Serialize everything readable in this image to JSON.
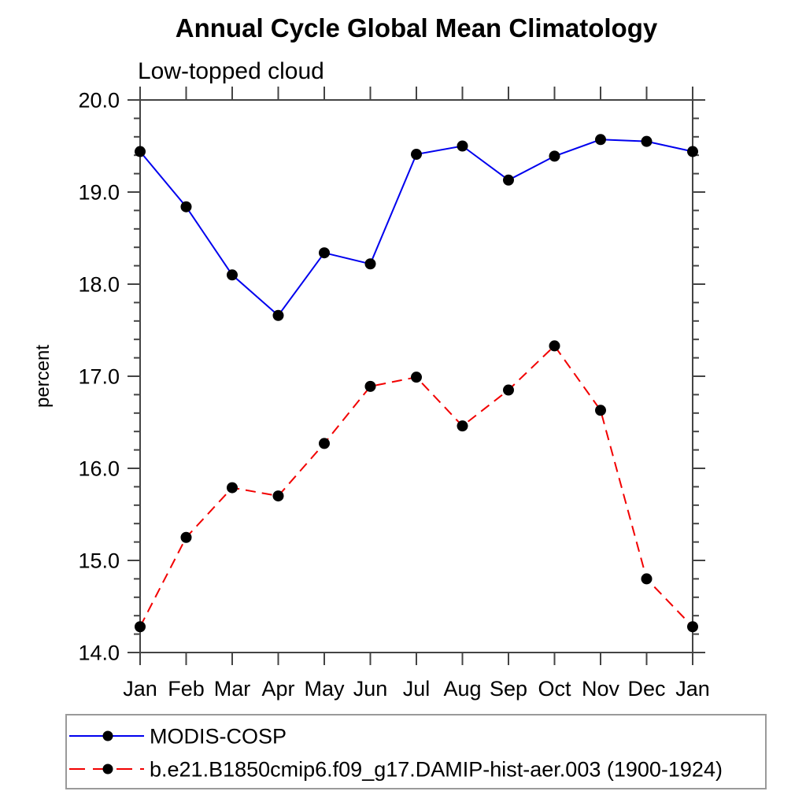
{
  "header": {
    "title": "Annual Cycle Global Mean Climatology",
    "subtitle": "Low-topped cloud"
  },
  "chart_data": {
    "type": "line",
    "title": "Annual Cycle Global Mean Climatology",
    "subtitle": "Low-topped cloud",
    "xlabel": "",
    "ylabel": "percent",
    "categories": [
      "Jan",
      "Feb",
      "Mar",
      "Apr",
      "May",
      "Jun",
      "Jul",
      "Aug",
      "Sep",
      "Oct",
      "Nov",
      "Dec",
      "Jan"
    ],
    "ylim": [
      14.0,
      20.0
    ],
    "ytick_major_step": 1.0,
    "ytick_minor_step": 0.2,
    "ytick_label_format": "one-decimal",
    "grid": false,
    "legend_position": "bottom-left-box",
    "series": [
      {
        "name": "MODIS-COSP",
        "color": "#0000ee",
        "line_style": "solid",
        "marker": "filled-circle",
        "marker_color": "#000000",
        "values": [
          19.44,
          18.84,
          18.1,
          17.66,
          18.34,
          18.22,
          19.41,
          19.5,
          19.13,
          19.39,
          19.57,
          19.55,
          19.44
        ]
      },
      {
        "name": "b.e21.B1850cmip6.f09_g17.DAMIP-hist-aer.003 (1900-1924)",
        "color": "#f20000",
        "line_style": "dashed",
        "marker": "filled-circle",
        "marker_color": "#000000",
        "values": [
          14.28,
          15.25,
          15.79,
          15.7,
          16.27,
          16.89,
          16.99,
          16.46,
          16.85,
          17.33,
          16.63,
          14.8,
          14.28
        ]
      }
    ]
  },
  "style": {
    "background": "#ffffff",
    "frame_color": "#444444",
    "text_color": "#000000",
    "legend_border_color": "#9a9a9a",
    "blue": "#0000ee",
    "red": "#f20000",
    "marker_black": "#000000"
  }
}
